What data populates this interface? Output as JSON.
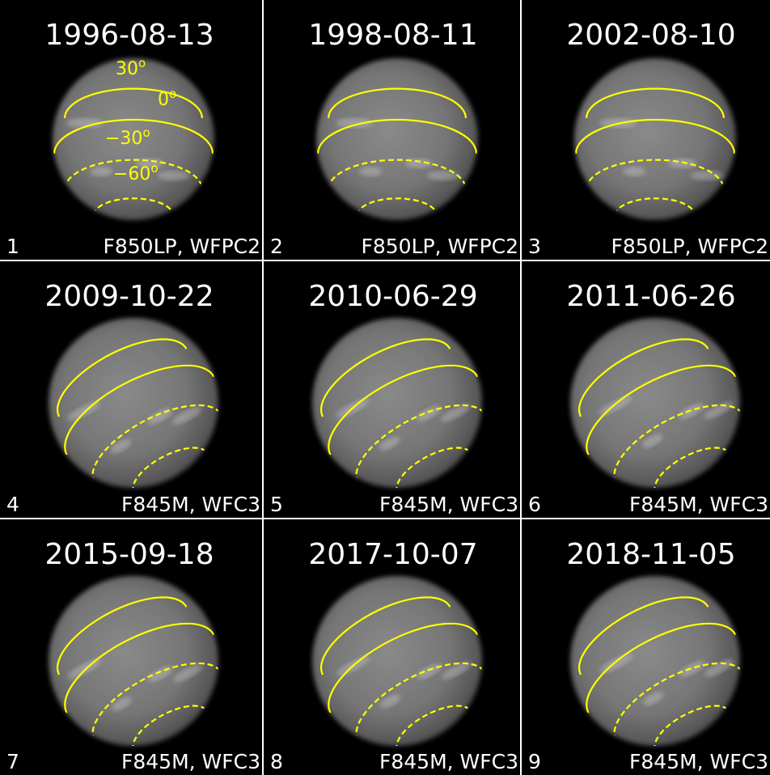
{
  "panels": [
    {
      "date": "1996-08-13",
      "number": "1",
      "filter": "F850LP, WFPC2"
    },
    {
      "date": "1998-08-11",
      "number": "2",
      "filter": "F850LP, WFPC2"
    },
    {
      "date": "2002-08-10",
      "number": "3",
      "filter": "F850LP, WFPC2"
    },
    {
      "date": "2009-10-22",
      "number": "4",
      "filter": "F845M, WFC3"
    },
    {
      "date": "2010-06-29",
      "number": "5",
      "filter": "F845M, WFC3"
    },
    {
      "date": "2011-06-26",
      "number": "6",
      "filter": "F845M, WFC3"
    },
    {
      "date": "2015-09-18",
      "number": "7",
      "filter": "F845M, WFC3"
    },
    {
      "date": "2017-10-07",
      "number": "8",
      "filter": "F845M, WFC3"
    },
    {
      "date": "2018-11-05",
      "number": "9",
      "filter": "F845M, WFC3"
    }
  ],
  "latitude_labels": [
    {
      "text": "30",
      "sup": "o"
    },
    {
      "text": "0",
      "sup": "o"
    },
    {
      "text": "−30",
      "sup": "o"
    },
    {
      "text": "−60",
      "sup": "o"
    }
  ]
}
